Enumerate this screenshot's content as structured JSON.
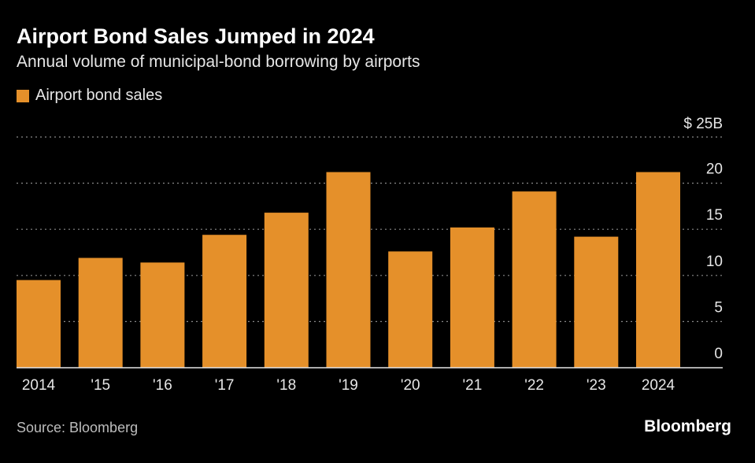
{
  "colors": {
    "bar": "#e5902a",
    "grid": "#8a8a8a",
    "axis": "#e6e6e6",
    "text": "#e6e6e6"
  },
  "chart_data": {
    "type": "bar",
    "title": "Airport Bond Sales Jumped in 2024",
    "subtitle": "Annual volume of municipal-bond borrowing by airports",
    "legend": [
      "Airport bond sales"
    ],
    "categories": [
      "2014",
      "'15",
      "'16",
      "'17",
      "'18",
      "'19",
      "'20",
      "'21",
      "'22",
      "'23",
      "2024"
    ],
    "series": [
      {
        "name": "Airport bond sales",
        "values": [
          9.5,
          11.9,
          11.4,
          14.4,
          16.8,
          21.2,
          12.6,
          15.2,
          19.1,
          14.2,
          21.2
        ]
      }
    ],
    "y_ticks": [
      0,
      5,
      10,
      15,
      20,
      25
    ],
    "y_tick_labels": [
      "0",
      "5",
      "10",
      "15",
      "20",
      "$ 25B"
    ],
    "ylim": [
      0,
      25
    ],
    "xlabel": "",
    "ylabel": "",
    "grid": true,
    "y_axis_position": "right"
  },
  "source": "Source: Bloomberg",
  "brand": "Bloomberg"
}
